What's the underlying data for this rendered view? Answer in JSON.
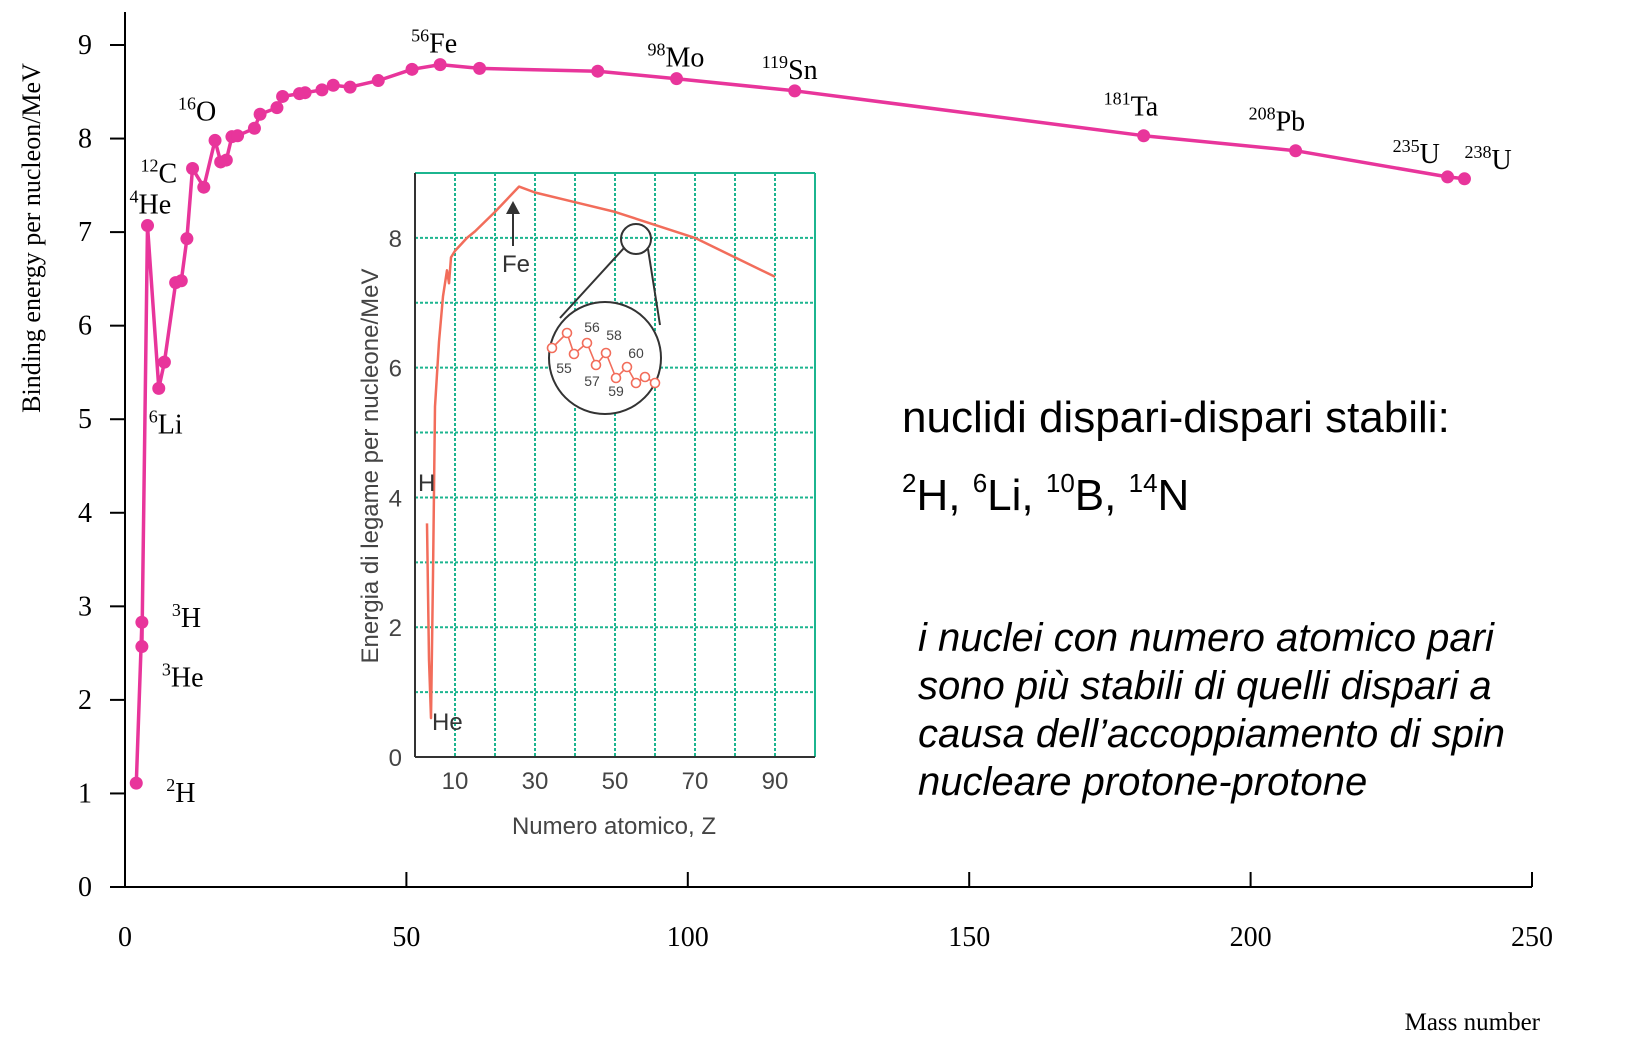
{
  "chart_data": [
    {
      "type": "line",
      "xlabel": "Mass number",
      "ylabel": "Binding energy per nucleon/MeV",
      "xlim": [
        0,
        250
      ],
      "ylim": [
        0,
        9
      ],
      "x_ticks": [
        "0",
        "50",
        "100",
        "150",
        "200",
        "250"
      ],
      "y_ticks": [
        "0",
        "1",
        "2",
        "3",
        "4",
        "5",
        "6",
        "7",
        "8",
        "9"
      ],
      "grid": false,
      "color": "#e8359b",
      "series": [
        {
          "x": [
            2,
            3,
            3,
            4,
            6,
            7,
            9,
            10,
            11,
            12,
            14,
            16,
            17,
            18,
            19,
            20,
            23,
            24,
            27,
            28,
            31,
            32,
            35,
            37,
            40,
            45,
            51,
            56,
            63,
            84,
            98,
            119,
            181,
            208,
            235,
            238
          ],
          "y": [
            1.11,
            2.83,
            2.57,
            7.07,
            5.33,
            5.61,
            6.46,
            6.48,
            6.93,
            7.68,
            7.48,
            7.98,
            7.75,
            7.77,
            8.02,
            8.03,
            8.11,
            8.26,
            8.33,
            8.45,
            8.48,
            8.49,
            8.52,
            8.57,
            8.55,
            8.62,
            8.74,
            8.79,
            8.75,
            8.72,
            8.64,
            8.51,
            8.03,
            7.87,
            7.59,
            7.57
          ]
        }
      ],
      "annotations": [
        {
          "mass": "2",
          "symbol": "H",
          "x": 2,
          "y": 1.11
        },
        {
          "mass": "3",
          "symbol": "H",
          "x": 3,
          "y": 2.83
        },
        {
          "mass": "3",
          "symbol": "He",
          "x": 3,
          "y": 2.57
        },
        {
          "mass": "4",
          "symbol": "He",
          "x": 4,
          "y": 7.07
        },
        {
          "mass": "6",
          "symbol": "Li",
          "x": 6,
          "y": 5.33
        },
        {
          "mass": "12",
          "symbol": "C",
          "x": 12,
          "y": 7.68
        },
        {
          "mass": "16",
          "symbol": "O",
          "x": 16,
          "y": 7.98
        },
        {
          "mass": "56",
          "symbol": "Fe",
          "x": 56,
          "y": 8.79
        },
        {
          "mass": "98",
          "symbol": "Mo",
          "x": 98,
          "y": 8.64
        },
        {
          "mass": "119",
          "symbol": "Sn",
          "x": 119,
          "y": 8.51
        },
        {
          "mass": "181",
          "symbol": "Ta",
          "x": 181,
          "y": 8.03
        },
        {
          "mass": "208",
          "symbol": "Pb",
          "x": 208,
          "y": 7.87
        },
        {
          "mass": "235",
          "symbol": "U",
          "x": 235,
          "y": 7.59
        },
        {
          "mass": "238",
          "symbol": "U",
          "x": 238,
          "y": 7.57
        }
      ]
    },
    {
      "type": "line",
      "xlabel": "Numero atomico, Z",
      "ylabel": "Energia di legame per nucleone/MeV",
      "xlim": [
        0,
        100
      ],
      "ylim": [
        0,
        9
      ],
      "x_ticks": [
        "10",
        "30",
        "50",
        "70",
        "90"
      ],
      "y_ticks": [
        "0",
        "2",
        "4",
        "6",
        "8"
      ],
      "grid": true,
      "grid_color": "#1cb58f",
      "line_color": "#f26d5b",
      "series": [
        {
          "x": [
            3,
            3.5,
            4,
            4.5,
            5,
            6,
            7,
            8,
            8.5,
            9,
            10,
            13,
            15,
            20,
            26,
            30,
            40,
            50,
            60,
            70,
            80,
            90
          ],
          "y": [
            3.6,
            1.5,
            0.6,
            2.8,
            5.4,
            6.4,
            7.1,
            7.5,
            7.3,
            7.7,
            7.8,
            8.0,
            8.1,
            8.4,
            8.79,
            8.7,
            8.55,
            8.4,
            8.2,
            8.0,
            7.7,
            7.4
          ]
        }
      ],
      "labels": {
        "H": "H",
        "He": "He",
        "Fe": "Fe"
      },
      "inset_mass_numbers": [
        "56",
        "58",
        "60",
        "55",
        "57",
        "59"
      ]
    }
  ],
  "notes": {
    "title": "nuclidi dispari-dispari stabili:",
    "list": [
      {
        "mass": "2",
        "symbol": "H"
      },
      {
        "mass": "6",
        "symbol": "Li"
      },
      {
        "mass": "10",
        "symbol": "B"
      },
      {
        "mass": "14",
        "symbol": "N"
      }
    ],
    "italic_lines": [
      "i nuclei con numero atomico pari",
      "sono più stabili di quelli dispari a",
      "causa dell’accoppiamento di spin",
      "nucleare protone-protone"
    ]
  }
}
